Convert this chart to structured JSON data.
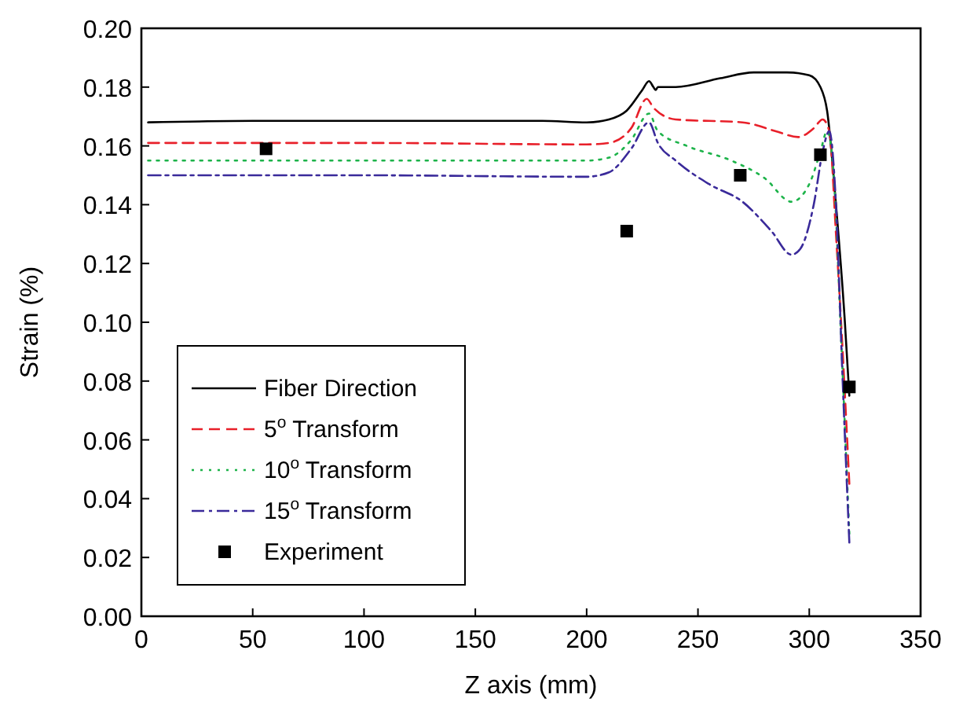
{
  "chart_data": {
    "type": "line",
    "xlabel": "Z axis (mm)",
    "ylabel": "Strain (%)",
    "xlim": [
      0,
      350
    ],
    "ylim": [
      0,
      0.2
    ],
    "xticks": [
      0,
      50,
      100,
      150,
      200,
      250,
      300,
      350
    ],
    "yticks": [
      {
        "value": 0,
        "label": "0.00"
      },
      {
        "value": 0.02,
        "label": "0.02"
      },
      {
        "value": 0.04,
        "label": "0.04"
      },
      {
        "value": 0.06,
        "label": "0.06"
      },
      {
        "value": 0.08,
        "label": "0.08"
      },
      {
        "value": 0.1,
        "label": "0.10"
      },
      {
        "value": 0.12,
        "label": "0.12"
      },
      {
        "value": 0.14,
        "label": "0.14"
      },
      {
        "value": 0.16,
        "label": "0.16"
      },
      {
        "value": 0.18,
        "label": "0.18"
      },
      {
        "value": 0.2,
        "label": "0.20"
      }
    ],
    "grid": false,
    "legend": "bottom left",
    "series": [
      {
        "name": "Fiber Direction",
        "color": "#000000",
        "line_style": "solid",
        "x": [
          3,
          50,
          100,
          180,
          200,
          210,
          218,
          225,
          228,
          230,
          231,
          232,
          240,
          260,
          275,
          290,
          300,
          305,
          308,
          312,
          316,
          318
        ],
        "values": [
          0.168,
          0.1685,
          0.1685,
          0.1685,
          0.168,
          0.169,
          0.172,
          0.179,
          0.182,
          0.18,
          0.179,
          0.18,
          0.18,
          0.183,
          0.185,
          0.185,
          0.184,
          0.18,
          0.172,
          0.14,
          0.1,
          0.075
        ]
      },
      {
        "name": "5$^{o}$ Transform",
        "color": "#e8202a",
        "line_style": "dashed",
        "x": [
          3,
          100,
          200,
          210,
          220,
          227,
          230,
          240,
          270,
          285,
          295,
          302,
          306,
          309,
          312,
          315,
          318
        ],
        "values": [
          0.161,
          0.161,
          0.1605,
          0.161,
          0.166,
          0.176,
          0.173,
          0.169,
          0.168,
          0.165,
          0.163,
          0.166,
          0.169,
          0.165,
          0.13,
          0.09,
          0.045
        ]
      },
      {
        "name": "10$^{o}$ Transform",
        "color": "#1db34a",
        "line_style": "dotted",
        "x": [
          3,
          200,
          210,
          220,
          228,
          232,
          245,
          265,
          280,
          292,
          300,
          305,
          308,
          311,
          314,
          318
        ],
        "values": [
          0.155,
          0.155,
          0.156,
          0.162,
          0.171,
          0.165,
          0.16,
          0.155,
          0.149,
          0.141,
          0.147,
          0.158,
          0.165,
          0.15,
          0.1,
          0.028
        ]
      },
      {
        "name": "15$^{o}$ Transform",
        "color": "#3a2a9a",
        "line_style": "dashdot",
        "x": [
          3,
          100,
          200,
          210,
          220,
          228,
          232,
          240,
          255,
          270,
          283,
          292,
          296,
          302,
          306,
          309,
          312,
          315,
          318
        ],
        "values": [
          0.15,
          0.15,
          0.1495,
          0.151,
          0.159,
          0.168,
          0.161,
          0.155,
          0.147,
          0.141,
          0.131,
          0.123,
          0.125,
          0.14,
          0.158,
          0.165,
          0.14,
          0.08,
          0.025
        ]
      },
      {
        "name": "Experiment",
        "type": "scatter",
        "marker": "square",
        "color": "#000000",
        "x": [
          56,
          218,
          269,
          305,
          318
        ],
        "values": [
          0.159,
          0.131,
          0.15,
          0.157,
          0.078
        ]
      }
    ]
  }
}
